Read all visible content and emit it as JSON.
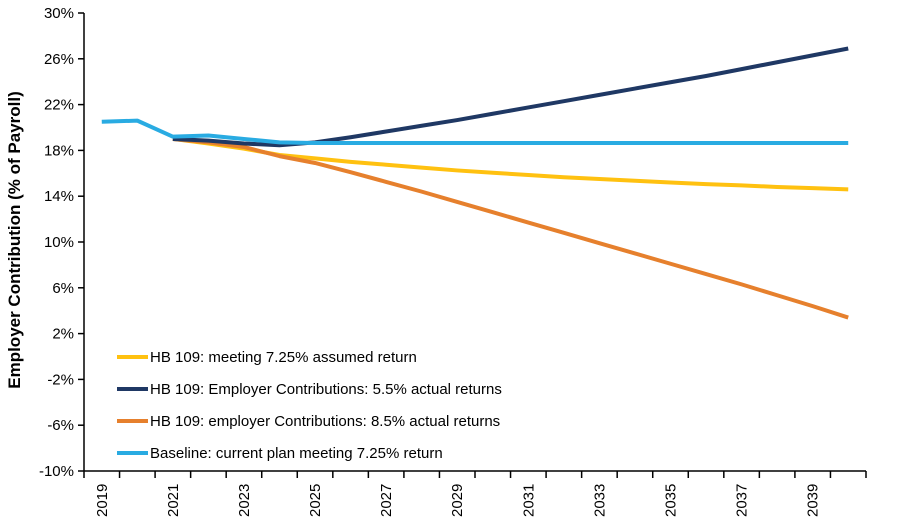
{
  "y_axis_title": "Employer Contribution (% of Payroll)",
  "legend": {
    "items": [
      {
        "label": "HB 109: meeting 7.25% assumed return",
        "color": "#FFC110"
      },
      {
        "label": "HB 109: Employer Contributions: 5.5% actual returns",
        "color": "#1F3864"
      },
      {
        "label": "HB 109: employer Contributions: 8.5% actual returns",
        "color": "#E6802D"
      },
      {
        "label": "Baseline: current plan meeting 7.25% return",
        "color": "#29ABE2"
      }
    ]
  },
  "chart_data": {
    "type": "line",
    "title": "",
    "xlabel": "",
    "ylabel": "Employer Contribution (% of Payroll)",
    "ylim": [
      -10,
      30
    ],
    "ytick_step": 4,
    "ytick_labels": [
      "30%",
      "26%",
      "22%",
      "18%",
      "14%",
      "10%",
      "6%",
      "2%",
      "-2%",
      "-6%",
      "-10%"
    ],
    "x": [
      2019,
      2020,
      2021,
      2022,
      2023,
      2024,
      2025,
      2026,
      2027,
      2028,
      2029,
      2030,
      2031,
      2032,
      2033,
      2034,
      2035,
      2036,
      2037,
      2038,
      2039,
      2040
    ],
    "xtick_labels": [
      "2019",
      "2021",
      "2023",
      "2025",
      "2027",
      "2029",
      "2031",
      "2033",
      "2035",
      "2037",
      "2039"
    ],
    "grid": false,
    "legend_position": "inside-bottom-left",
    "axis_color": "#000000",
    "line_width": 4,
    "draw_order": [
      0,
      2,
      1,
      3
    ],
    "series": [
      {
        "name": "HB 109: meeting 7.25% assumed return",
        "color": "#FFC110",
        "values": [
          null,
          null,
          19.0,
          18.6,
          18.15,
          17.6,
          17.3,
          17.0,
          16.75,
          16.5,
          16.25,
          16.05,
          15.85,
          15.65,
          15.5,
          15.35,
          15.2,
          15.05,
          14.95,
          14.8,
          14.7,
          14.6
        ]
      },
      {
        "name": "HB 109: Employer Contributions: 5.5% actual returns",
        "color": "#1F3864",
        "values": [
          null,
          null,
          19.0,
          18.85,
          18.6,
          18.45,
          18.7,
          19.15,
          19.65,
          20.15,
          20.65,
          21.2,
          21.75,
          22.3,
          22.85,
          23.4,
          23.95,
          24.5,
          25.1,
          25.7,
          26.3,
          26.9
        ]
      },
      {
        "name": "HB 109: employer Contributions: 8.5% actual returns",
        "color": "#E6802D",
        "values": [
          null,
          null,
          19.0,
          18.7,
          18.3,
          17.5,
          16.9,
          16.1,
          15.25,
          14.4,
          13.5,
          12.6,
          11.7,
          10.8,
          9.9,
          9.0,
          8.1,
          7.2,
          6.3,
          5.35,
          4.4,
          3.4
        ]
      },
      {
        "name": "Baseline: current plan meeting 7.25% return",
        "color": "#29ABE2",
        "values": [
          20.5,
          20.6,
          19.2,
          19.3,
          19.0,
          18.7,
          18.65,
          18.65,
          18.65,
          18.65,
          18.65,
          18.65,
          18.65,
          18.65,
          18.65,
          18.65,
          18.65,
          18.65,
          18.65,
          18.65,
          18.65,
          18.65
        ]
      }
    ]
  }
}
